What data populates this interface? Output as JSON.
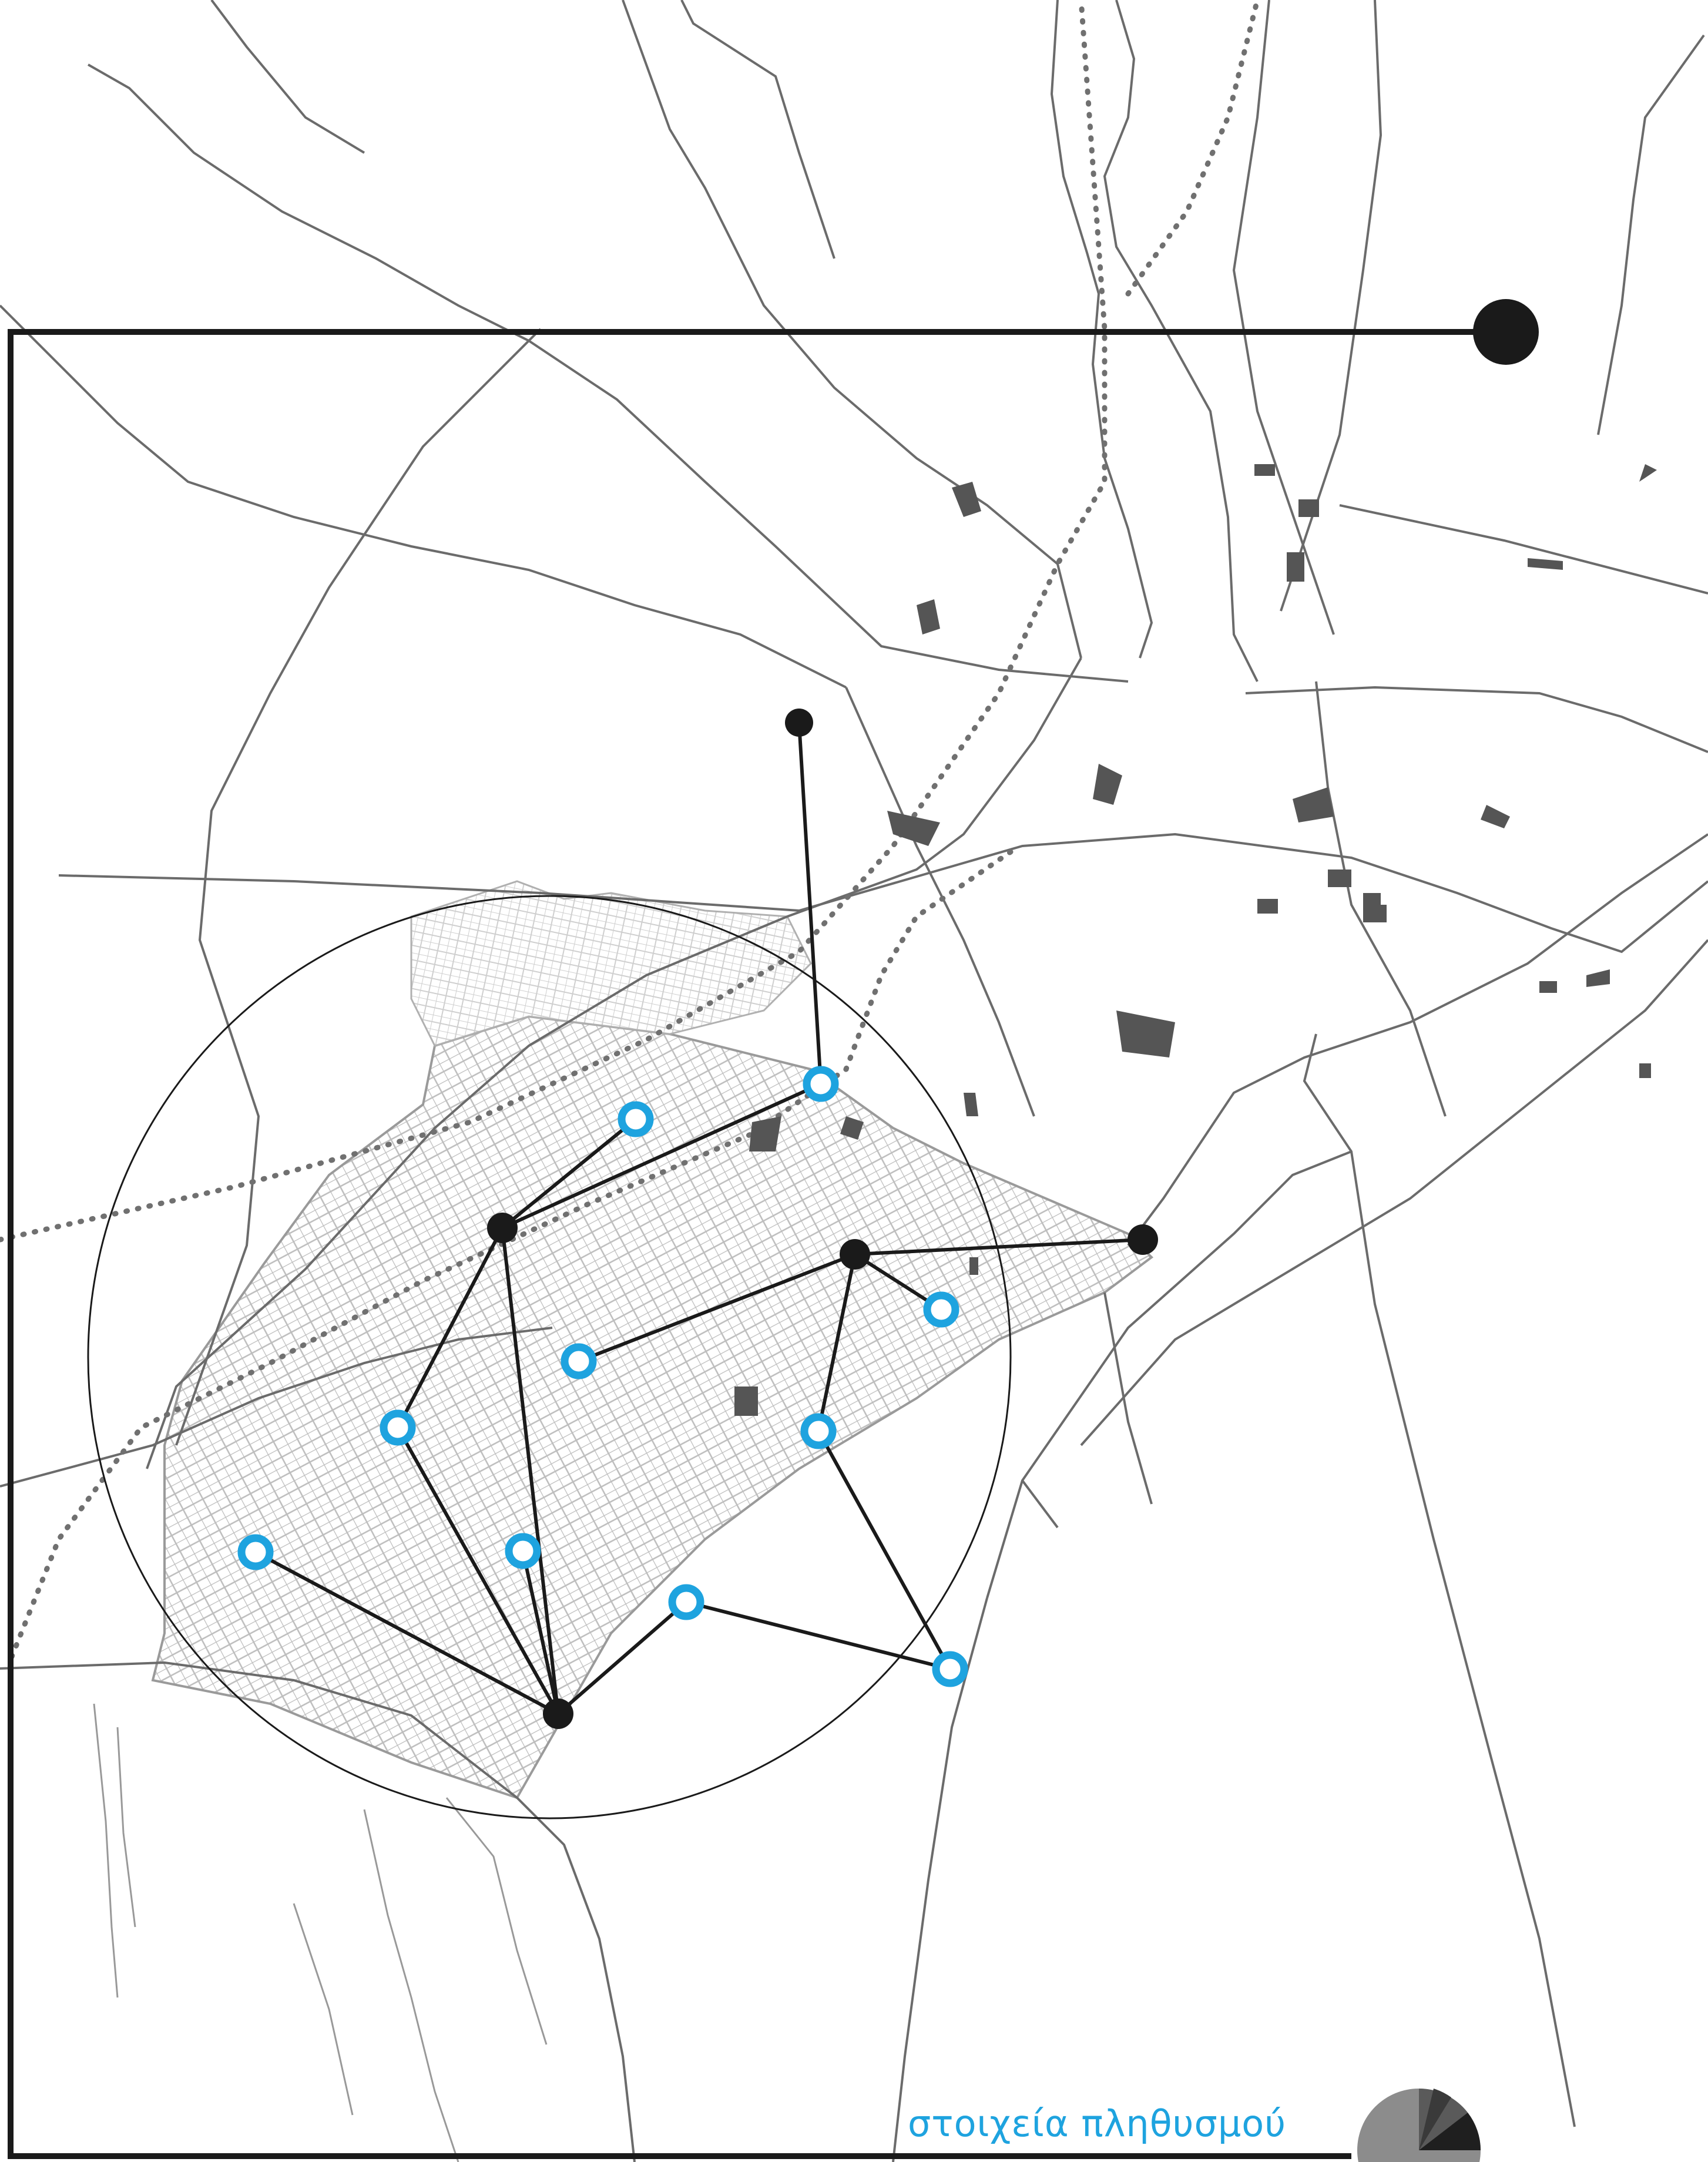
{
  "legend": {
    "label": "στοιχεία πληθυσμού",
    "color": "#1ea3df",
    "pie_colors": [
      "#8c8c8c",
      "#3a3a3a",
      "#1f1f1f",
      "#5a5a5a"
    ]
  },
  "colors": {
    "background": "#ffffff",
    "roads": "#6b6b6b",
    "street_grid": "#b8b8b8",
    "rail_dots": "#707070",
    "network": "#1a1a1a",
    "hub_node": "#1a1a1a",
    "population_node": "#1ea3df",
    "buildings": "#555555"
  },
  "network": {
    "hub_node_count": 5,
    "population_node_count": 10
  },
  "icons": {
    "hub": "filled-circle-icon",
    "population_point": "ring-icon",
    "legend_pie": "pie-chart-icon"
  }
}
